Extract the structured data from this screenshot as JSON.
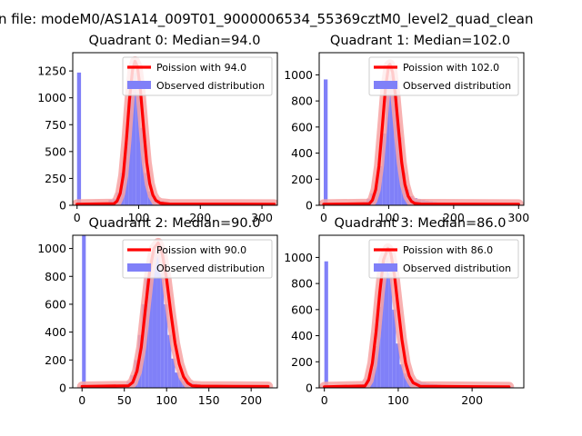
{
  "figure": {
    "suptitle": "n file: modeM0/AS1A14_009T01_9000006534_55369cztM0_level2_quad_clean"
  },
  "colors": {
    "hist": "#8080f8",
    "poisson": "#ff0000",
    "poisson_band": "#f7a3a3",
    "legend_border": "#cccccc"
  },
  "chart_data": [
    {
      "type": "bar",
      "title": "Quadrant 0: Median=94.0",
      "median": 94.0,
      "legend": {
        "line_label": "Poission with 94.0",
        "hist_label": "Observed distribution",
        "loc": "upper right"
      },
      "xlim": [
        -7,
        325
      ],
      "ylim": [
        0,
        1420
      ],
      "xticks": [
        0,
        100,
        200,
        300
      ],
      "yticks": [
        0,
        250,
        500,
        750,
        1000,
        1250
      ],
      "bin_width": 6.4,
      "histogram": {
        "bin_starts": [
          0,
          6.4,
          12.8,
          19.2,
          25.6,
          32,
          38.4,
          44.8,
          51.2,
          57.6,
          64,
          70.4,
          76.8,
          83.2,
          89.6,
          96,
          102.4,
          108.8,
          115.2,
          121.6,
          128,
          134.4,
          140.8,
          147.2,
          153.6,
          160,
          166.4,
          172.8,
          179.2,
          185.6,
          192,
          198.4,
          204.8,
          211.2,
          217.6,
          224,
          230.4,
          236.8,
          243.2,
          249.6,
          256,
          262.4,
          268.8,
          275.2,
          281.6,
          288,
          294.4,
          300.8,
          307.2,
          313.6
        ],
        "counts": [
          1235,
          12,
          10,
          8,
          7,
          6,
          6,
          12,
          50,
          60,
          120,
          300,
          580,
          1040,
          1230,
          1050,
          720,
          300,
          130,
          85,
          55,
          40,
          30,
          25,
          20,
          18,
          15,
          15,
          12,
          10,
          10,
          10,
          10,
          10,
          10,
          10,
          10,
          8,
          8,
          8,
          8,
          8,
          8,
          8,
          8,
          8,
          8,
          8,
          8,
          8
        ]
      },
      "poisson": {
        "x": [
          0,
          60,
          65,
          70,
          75,
          80,
          85,
          90,
          94,
          98,
          103,
          108,
          113,
          118,
          123,
          128,
          135,
          150,
          320
        ],
        "y": [
          10,
          15,
          40,
          110,
          280,
          600,
          980,
          1260,
          1340,
          1290,
          1060,
          720,
          400,
          200,
          95,
          45,
          20,
          12,
          10
        ]
      }
    },
    {
      "type": "bar",
      "title": "Quadrant 1: Median=102.0",
      "median": 102.0,
      "legend": {
        "line_label": "Poission with 102.0",
        "hist_label": "Observed distribution",
        "loc": "upper right"
      },
      "xlim": [
        -7,
        308
      ],
      "ylim": [
        0,
        1170
      ],
      "xticks": [
        0,
        100,
        200,
        300
      ],
      "yticks": [
        0,
        200,
        400,
        600,
        800,
        1000
      ],
      "bin_width": 6,
      "histogram": {
        "bin_starts": [
          0,
          6,
          12,
          18,
          24,
          30,
          36,
          42,
          48,
          54,
          60,
          66,
          72,
          78,
          84,
          90,
          96,
          102,
          108,
          114,
          120,
          126,
          132,
          138,
          144,
          150,
          156,
          162,
          168,
          174,
          180,
          186,
          192,
          198,
          204,
          210,
          216,
          222,
          228,
          234,
          240,
          246,
          252,
          258,
          264,
          270,
          276,
          282,
          288,
          294
        ],
        "counts": [
          965,
          10,
          8,
          7,
          6,
          6,
          6,
          8,
          10,
          15,
          25,
          50,
          90,
          150,
          300,
          550,
          900,
          1000,
          880,
          520,
          250,
          120,
          70,
          55,
          45,
          40,
          35,
          30,
          25,
          22,
          20,
          18,
          18,
          15,
          15,
          15,
          12,
          12,
          12,
          10,
          10,
          10,
          10,
          10,
          10,
          10,
          10,
          8,
          8,
          8
        ]
      },
      "poisson": {
        "x": [
          0,
          70,
          75,
          80,
          85,
          90,
          95,
          100,
          102,
          106,
          110,
          115,
          120,
          125,
          130,
          135,
          140,
          150,
          300
        ],
        "y": [
          8,
          12,
          40,
          120,
          300,
          590,
          900,
          1070,
          1080,
          1020,
          860,
          590,
          330,
          160,
          70,
          30,
          15,
          10,
          8
        ]
      }
    },
    {
      "type": "bar",
      "title": "Quadrant 2: Median=90.0",
      "median": 90.0,
      "legend": {
        "line_label": "Poission with 90.0",
        "hist_label": "Observed distribution",
        "loc": "upper right"
      },
      "xlim": [
        -11,
        231
      ],
      "ylim": [
        0,
        1095
      ],
      "xticks": [
        0,
        50,
        100,
        150,
        200
      ],
      "yticks": [
        0,
        200,
        400,
        600,
        800,
        1000
      ],
      "bin_width": 4.4,
      "histogram": {
        "bin_starts": [
          0,
          4.4,
          8.8,
          13.2,
          17.6,
          22,
          26.4,
          30.8,
          35.2,
          39.6,
          44,
          48.4,
          52.8,
          57.2,
          61.6,
          66,
          70.4,
          74.8,
          79.2,
          83.6,
          88,
          92.4,
          96.8,
          101.2,
          105.6,
          110,
          114.4,
          118.8,
          123.2,
          127.6,
          132,
          136.4,
          140.8,
          145.2,
          149.6,
          154,
          158.4,
          162.8,
          167.2,
          171.6,
          176,
          180.4,
          184.8,
          189.2,
          193.6,
          198,
          202.4,
          206.8,
          211.2,
          215.6
        ],
        "counts": [
          1095,
          8,
          6,
          5,
          5,
          5,
          5,
          6,
          6,
          8,
          12,
          25,
          45,
          90,
          200,
          380,
          600,
          800,
          920,
          1000,
          985,
          820,
          600,
          380,
          210,
          110,
          70,
          50,
          40,
          35,
          30,
          25,
          22,
          20,
          18,
          16,
          14,
          12,
          12,
          12,
          10,
          10,
          10,
          10,
          10,
          8,
          8,
          8,
          8,
          8
        ]
      },
      "poisson": {
        "x": [
          0,
          55,
          60,
          65,
          70,
          75,
          80,
          85,
          90,
          95,
          100,
          105,
          110,
          115,
          120,
          125,
          130,
          140,
          220
        ],
        "y": [
          10,
          15,
          40,
          120,
          290,
          570,
          840,
          1000,
          1040,
          960,
          780,
          540,
          320,
          170,
          80,
          35,
          15,
          12,
          10
        ]
      }
    },
    {
      "type": "bar",
      "title": "Quadrant 3: Median=86.0",
      "median": 86.0,
      "legend": {
        "line_label": "Poission with 86.0",
        "hist_label": "Observed distribution",
        "loc": "upper right"
      },
      "xlim": [
        -7,
        270
      ],
      "ylim": [
        0,
        1170
      ],
      "xticks": [
        0,
        100,
        200
      ],
      "yticks": [
        0,
        200,
        400,
        600,
        800,
        1000
      ],
      "bin_width": 5.1,
      "histogram": {
        "bin_starts": [
          0,
          5.1,
          10.2,
          15.3,
          20.4,
          25.5,
          30.6,
          35.7,
          40.8,
          45.9,
          51,
          56.1,
          61.2,
          66.3,
          71.4,
          76.5,
          81.6,
          86.7,
          91.8,
          96.9,
          102,
          107.1,
          112.2,
          117.3,
          122.4,
          127.5,
          132.6,
          137.7,
          142.8,
          147.9,
          153,
          158.1,
          163.2,
          168.3,
          173.4,
          178.5,
          183.6,
          188.7,
          193.8,
          198.9,
          204,
          209.1,
          214.2,
          219.3,
          224.4,
          229.5,
          234.6,
          239.7,
          244.8,
          249.9
        ],
        "counts": [
          970,
          8,
          6,
          5,
          5,
          5,
          5,
          6,
          8,
          12,
          30,
          70,
          150,
          320,
          620,
          920,
          1000,
          880,
          600,
          340,
          180,
          110,
          75,
          60,
          50,
          45,
          40,
          35,
          30,
          28,
          25,
          22,
          20,
          18,
          16,
          15,
          14,
          12,
          12,
          12,
          10,
          10,
          10,
          10,
          10,
          8,
          8,
          8,
          8,
          8
        ]
      },
      "poisson": {
        "x": [
          0,
          55,
          60,
          65,
          70,
          75,
          80,
          86,
          90,
          95,
          100,
          105,
          110,
          115,
          120,
          130,
          250
        ],
        "y": [
          8,
          15,
          60,
          190,
          430,
          730,
          980,
          1070,
          1030,
          860,
          610,
          370,
          190,
          90,
          40,
          12,
          8
        ]
      }
    }
  ]
}
